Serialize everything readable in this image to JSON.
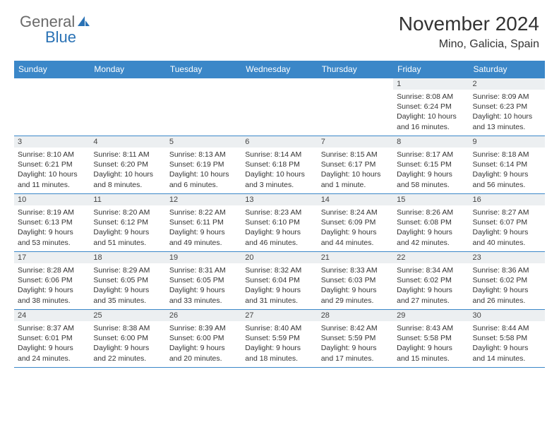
{
  "brand": {
    "part1": "General",
    "part2": "Blue"
  },
  "title": "November 2024",
  "location": "Mino, Galicia, Spain",
  "colors": {
    "header_bg": "#3b87c8",
    "header_text": "#ffffff",
    "daybar_bg": "#eceff1",
    "border": "#3b87c8",
    "logo_gray": "#6a6a6a",
    "logo_blue": "#2a72b5"
  },
  "weekday_labels": [
    "Sunday",
    "Monday",
    "Tuesday",
    "Wednesday",
    "Thursday",
    "Friday",
    "Saturday"
  ],
  "weeks": [
    [
      {
        "blank": true
      },
      {
        "blank": true
      },
      {
        "blank": true
      },
      {
        "blank": true
      },
      {
        "blank": true
      },
      {
        "day": "1",
        "sunrise": "Sunrise: 8:08 AM",
        "sunset": "Sunset: 6:24 PM",
        "daylight": "Daylight: 10 hours and 16 minutes."
      },
      {
        "day": "2",
        "sunrise": "Sunrise: 8:09 AM",
        "sunset": "Sunset: 6:23 PM",
        "daylight": "Daylight: 10 hours and 13 minutes."
      }
    ],
    [
      {
        "day": "3",
        "sunrise": "Sunrise: 8:10 AM",
        "sunset": "Sunset: 6:21 PM",
        "daylight": "Daylight: 10 hours and 11 minutes."
      },
      {
        "day": "4",
        "sunrise": "Sunrise: 8:11 AM",
        "sunset": "Sunset: 6:20 PM",
        "daylight": "Daylight: 10 hours and 8 minutes."
      },
      {
        "day": "5",
        "sunrise": "Sunrise: 8:13 AM",
        "sunset": "Sunset: 6:19 PM",
        "daylight": "Daylight: 10 hours and 6 minutes."
      },
      {
        "day": "6",
        "sunrise": "Sunrise: 8:14 AM",
        "sunset": "Sunset: 6:18 PM",
        "daylight": "Daylight: 10 hours and 3 minutes."
      },
      {
        "day": "7",
        "sunrise": "Sunrise: 8:15 AM",
        "sunset": "Sunset: 6:17 PM",
        "daylight": "Daylight: 10 hours and 1 minute."
      },
      {
        "day": "8",
        "sunrise": "Sunrise: 8:17 AM",
        "sunset": "Sunset: 6:15 PM",
        "daylight": "Daylight: 9 hours and 58 minutes."
      },
      {
        "day": "9",
        "sunrise": "Sunrise: 8:18 AM",
        "sunset": "Sunset: 6:14 PM",
        "daylight": "Daylight: 9 hours and 56 minutes."
      }
    ],
    [
      {
        "day": "10",
        "sunrise": "Sunrise: 8:19 AM",
        "sunset": "Sunset: 6:13 PM",
        "daylight": "Daylight: 9 hours and 53 minutes."
      },
      {
        "day": "11",
        "sunrise": "Sunrise: 8:20 AM",
        "sunset": "Sunset: 6:12 PM",
        "daylight": "Daylight: 9 hours and 51 minutes."
      },
      {
        "day": "12",
        "sunrise": "Sunrise: 8:22 AM",
        "sunset": "Sunset: 6:11 PM",
        "daylight": "Daylight: 9 hours and 49 minutes."
      },
      {
        "day": "13",
        "sunrise": "Sunrise: 8:23 AM",
        "sunset": "Sunset: 6:10 PM",
        "daylight": "Daylight: 9 hours and 46 minutes."
      },
      {
        "day": "14",
        "sunrise": "Sunrise: 8:24 AM",
        "sunset": "Sunset: 6:09 PM",
        "daylight": "Daylight: 9 hours and 44 minutes."
      },
      {
        "day": "15",
        "sunrise": "Sunrise: 8:26 AM",
        "sunset": "Sunset: 6:08 PM",
        "daylight": "Daylight: 9 hours and 42 minutes."
      },
      {
        "day": "16",
        "sunrise": "Sunrise: 8:27 AM",
        "sunset": "Sunset: 6:07 PM",
        "daylight": "Daylight: 9 hours and 40 minutes."
      }
    ],
    [
      {
        "day": "17",
        "sunrise": "Sunrise: 8:28 AM",
        "sunset": "Sunset: 6:06 PM",
        "daylight": "Daylight: 9 hours and 38 minutes."
      },
      {
        "day": "18",
        "sunrise": "Sunrise: 8:29 AM",
        "sunset": "Sunset: 6:05 PM",
        "daylight": "Daylight: 9 hours and 35 minutes."
      },
      {
        "day": "19",
        "sunrise": "Sunrise: 8:31 AM",
        "sunset": "Sunset: 6:05 PM",
        "daylight": "Daylight: 9 hours and 33 minutes."
      },
      {
        "day": "20",
        "sunrise": "Sunrise: 8:32 AM",
        "sunset": "Sunset: 6:04 PM",
        "daylight": "Daylight: 9 hours and 31 minutes."
      },
      {
        "day": "21",
        "sunrise": "Sunrise: 8:33 AM",
        "sunset": "Sunset: 6:03 PM",
        "daylight": "Daylight: 9 hours and 29 minutes."
      },
      {
        "day": "22",
        "sunrise": "Sunrise: 8:34 AM",
        "sunset": "Sunset: 6:02 PM",
        "daylight": "Daylight: 9 hours and 27 minutes."
      },
      {
        "day": "23",
        "sunrise": "Sunrise: 8:36 AM",
        "sunset": "Sunset: 6:02 PM",
        "daylight": "Daylight: 9 hours and 26 minutes."
      }
    ],
    [
      {
        "day": "24",
        "sunrise": "Sunrise: 8:37 AM",
        "sunset": "Sunset: 6:01 PM",
        "daylight": "Daylight: 9 hours and 24 minutes."
      },
      {
        "day": "25",
        "sunrise": "Sunrise: 8:38 AM",
        "sunset": "Sunset: 6:00 PM",
        "daylight": "Daylight: 9 hours and 22 minutes."
      },
      {
        "day": "26",
        "sunrise": "Sunrise: 8:39 AM",
        "sunset": "Sunset: 6:00 PM",
        "daylight": "Daylight: 9 hours and 20 minutes."
      },
      {
        "day": "27",
        "sunrise": "Sunrise: 8:40 AM",
        "sunset": "Sunset: 5:59 PM",
        "daylight": "Daylight: 9 hours and 18 minutes."
      },
      {
        "day": "28",
        "sunrise": "Sunrise: 8:42 AM",
        "sunset": "Sunset: 5:59 PM",
        "daylight": "Daylight: 9 hours and 17 minutes."
      },
      {
        "day": "29",
        "sunrise": "Sunrise: 8:43 AM",
        "sunset": "Sunset: 5:58 PM",
        "daylight": "Daylight: 9 hours and 15 minutes."
      },
      {
        "day": "30",
        "sunrise": "Sunrise: 8:44 AM",
        "sunset": "Sunset: 5:58 PM",
        "daylight": "Daylight: 9 hours and 14 minutes."
      }
    ]
  ]
}
